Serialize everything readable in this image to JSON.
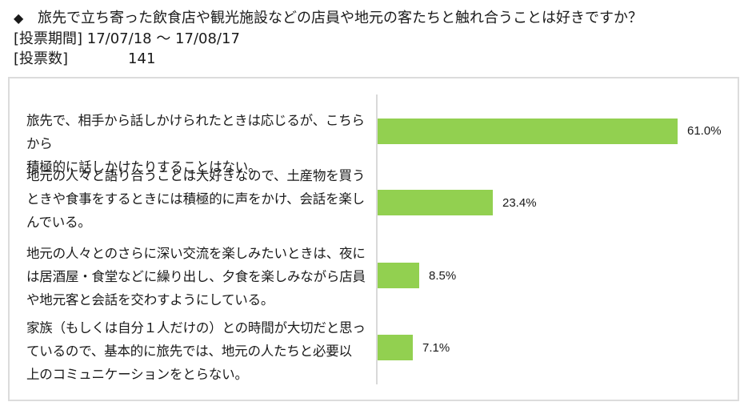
{
  "header": {
    "bullet_icon": "◆",
    "question": "旅先で立ち寄った飲食店や観光施設などの店員や地元の客たちと触れ合うことは好きですか？",
    "period_label": "[投票期間] 17/07/18 ～ 17/08/17",
    "votes_label": "[投票数]",
    "votes_value": "141"
  },
  "chart_data": {
    "type": "bar",
    "orientation": "horizontal",
    "title": "旅先で立ち寄った飲食店や観光施設などの店員や地元の客たちと触れ合うことは好きですか？",
    "xlabel": "",
    "ylabel": "",
    "grid": false,
    "legend": null,
    "bar_color": "#92d050",
    "unit": "%",
    "categories": [
      "旅先で、相手から話しかけられたときは応じるが、こちらから積極的に話しかけたりすることはない。",
      "地元の人々と語り合うことは大好きなので、土産物を買うときや食事をするときには積極的に声をかけ、会話を楽しんでいる。",
      "地元の人々とのさらに深い交流を楽しみたいときは、夜には居酒屋・食堂などに繰り出し、夕食を楽しみながら店員や地元客と会話を交わすようにしている。",
      "家族（もしくは自分１人だけの）との時間が大切だと思っているので、基本的に旅先では、地元の人たちと必要以上のコミュニケーションをとらない。"
    ],
    "values": [
      61.0,
      23.4,
      8.5,
      7.1
    ],
    "value_labels": [
      "61.0%",
      "23.4%",
      "8.5%",
      "7.1%"
    ],
    "xlim": [
      0,
      73.6
    ]
  },
  "items": [
    {
      "lines": [
        "旅先で、相手から話しかけられたときは応じるが、こちらから",
        "積極的に話しかけたりすることはない。"
      ],
      "value": 61.0,
      "label": "61.0%"
    },
    {
      "lines": [
        "地元の人々と語り合うことは大好きなので、土産物を買う",
        "ときや食事をするときには積極的に声をかけ、会話を楽し",
        "んでいる。"
      ],
      "value": 23.4,
      "label": "23.4%"
    },
    {
      "lines": [
        "地元の人々とのさらに深い交流を楽しみたいときは、夜に",
        "は居酒屋・食堂などに繰り出し、夕食を楽しみながら店員",
        "や地元客と会話を交わすようにしている。"
      ],
      "value": 8.5,
      "label": "8.5%"
    },
    {
      "lines": [
        "家族（もしくは自分１人だけの）との時間が大切だと思っ",
        "ているので、基本的に旅先では、地元の人たちと必要以",
        "上のコミュニケーションをとらない。"
      ],
      "value": 7.1,
      "label": "7.1%"
    }
  ]
}
